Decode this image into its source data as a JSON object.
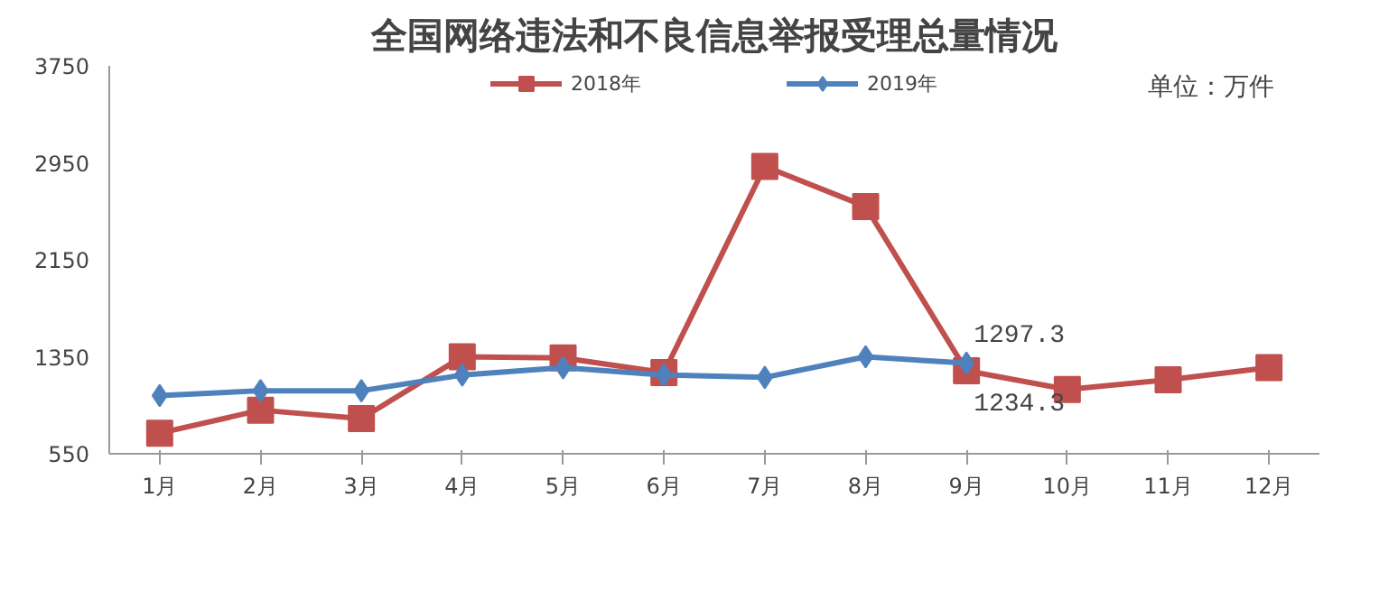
{
  "chart_data": {
    "type": "line",
    "title": "全国网络违法和不良信息举报受理总量情况",
    "annotations": [
      "单位：万件"
    ],
    "categories": [
      "1月",
      "2月",
      "3月",
      "4月",
      "5月",
      "6月",
      "7月",
      "8月",
      "9月",
      "10月",
      "11月",
      "12月"
    ],
    "series": [
      {
        "name": "2018年",
        "color": "#c0504d",
        "marker": "square",
        "values": [
          720,
          910,
          840,
          1350,
          1340,
          1220,
          2920,
          2590,
          1234.3,
          1080,
          1160,
          1260
        ],
        "value_labels": [
          null,
          null,
          null,
          null,
          null,
          null,
          null,
          null,
          "1234.3",
          null,
          null,
          null
        ]
      },
      {
        "name": "2019年",
        "color": "#4f81bd",
        "marker": "diamond",
        "values": [
          1030,
          1070,
          1070,
          1200,
          1260,
          1200,
          1180,
          1350,
          1297.3,
          null,
          null,
          null
        ],
        "value_labels": [
          null,
          null,
          null,
          null,
          null,
          null,
          null,
          null,
          "1297.3",
          null,
          null,
          null
        ]
      }
    ],
    "ylim": [
      550,
      3750
    ],
    "yticks": [
      550,
      1350,
      2150,
      2950,
      3750
    ],
    "grid": false,
    "legend": "top",
    "line_style": "solid"
  }
}
